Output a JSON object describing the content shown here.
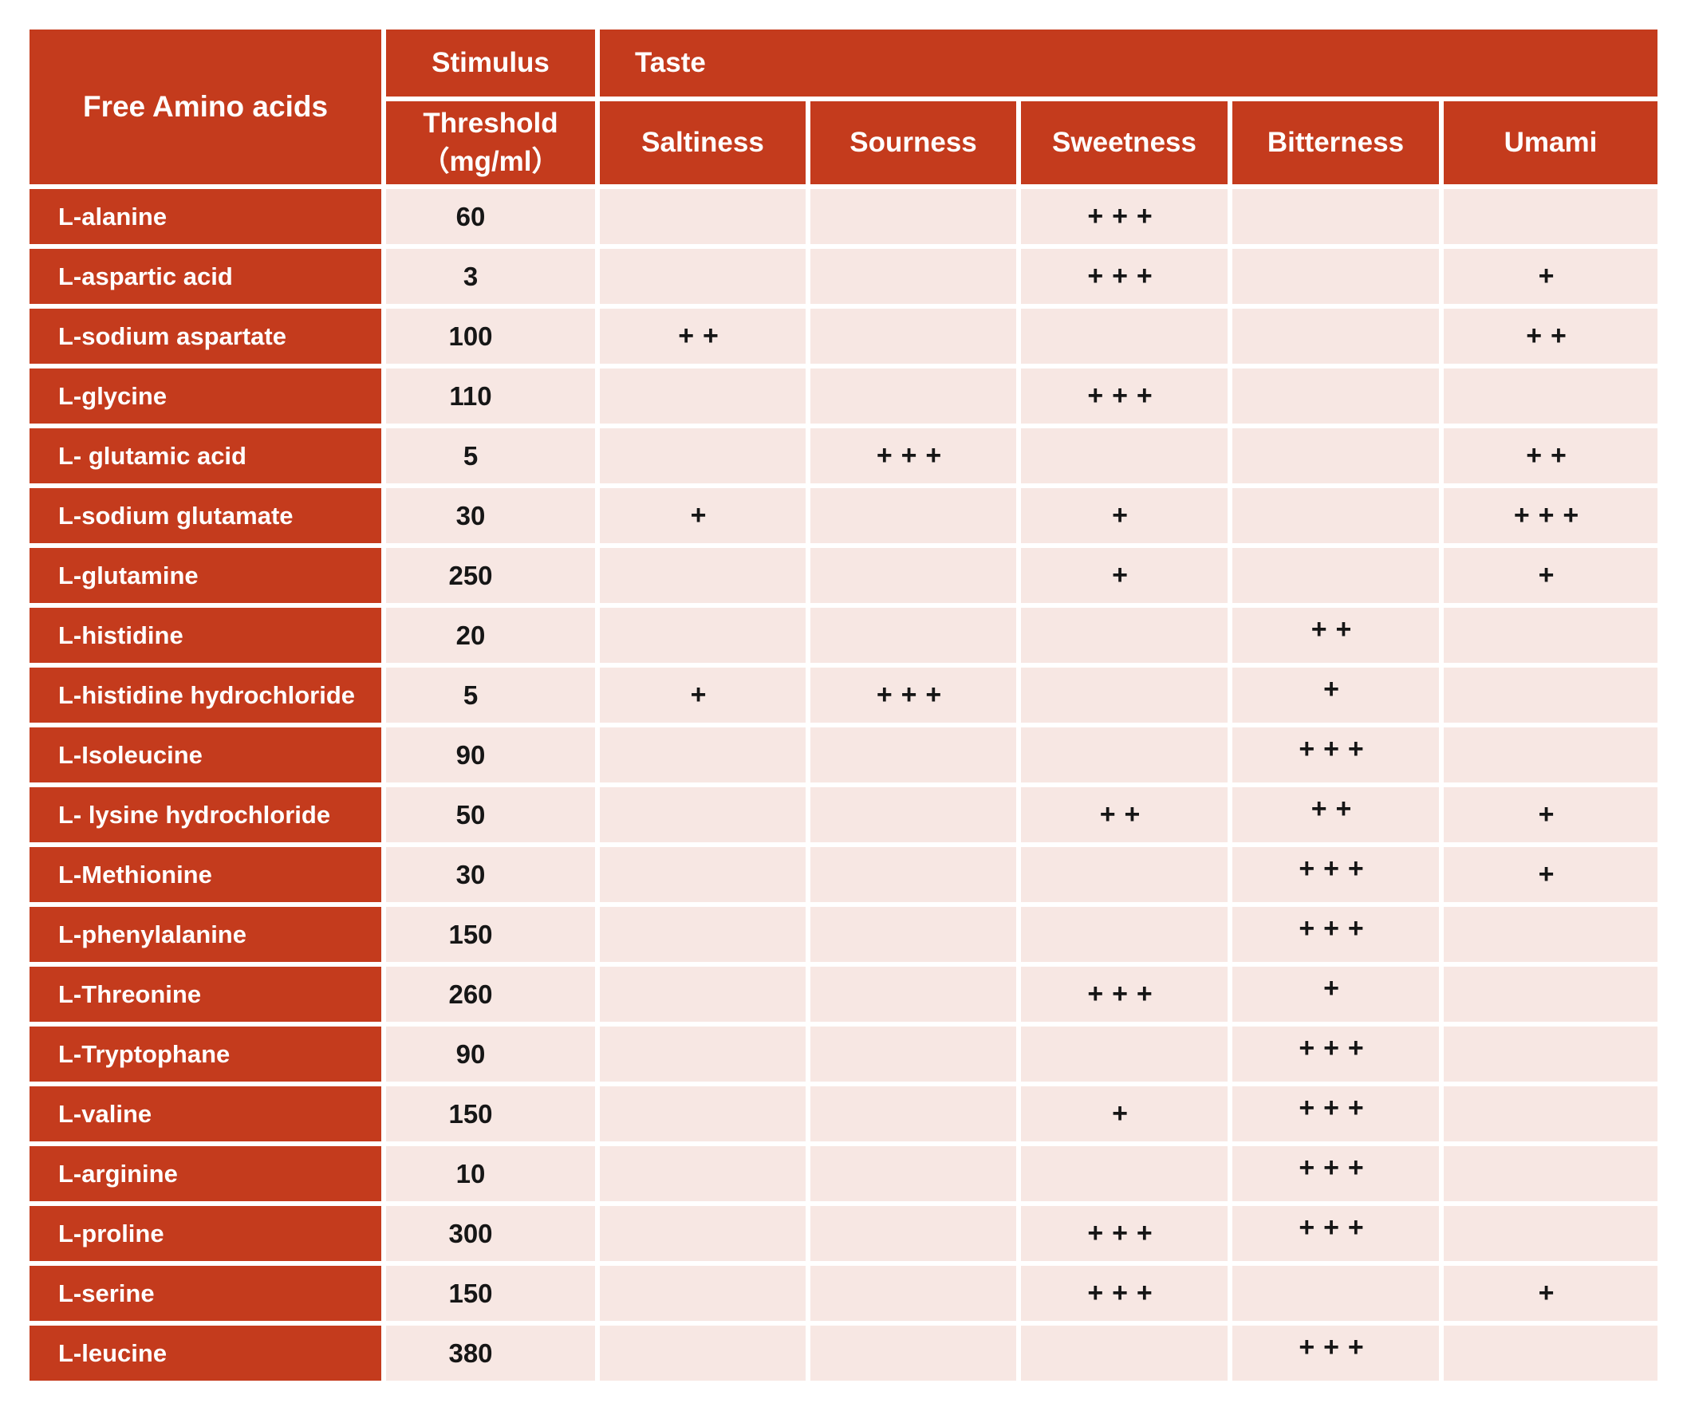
{
  "colors": {
    "header_red": "#c43b1d",
    "cell_pink": "#f7e7e3",
    "text_black": "#161616",
    "background": "#ffffff"
  },
  "header": {
    "amino_column": "Free Amino acids",
    "stimulus": "Stimulus",
    "threshold": "Threshold",
    "threshold_unit": "（mg/ml）",
    "taste": "Taste",
    "taste_columns": [
      "Saltiness",
      "Sourness",
      "Sweetness",
      "Bitterness",
      "Umami"
    ]
  },
  "rows": [
    {
      "name": "L-alanine",
      "threshold": "60",
      "saltiness": "",
      "sourness": "",
      "sweetness": "+++",
      "bitterness": "",
      "umami": ""
    },
    {
      "name": "L-aspartic acid",
      "threshold": "3",
      "saltiness": "",
      "sourness": "",
      "sweetness": "+++",
      "bitterness": "",
      "umami": "+"
    },
    {
      "name": "L-sodium aspartate",
      "threshold": "100",
      "saltiness": "++",
      "sourness": "",
      "sweetness": "",
      "bitterness": "",
      "umami": "++"
    },
    {
      "name": "L-glycine",
      "threshold": "110",
      "saltiness": "",
      "sourness": "",
      "sweetness": "+++",
      "bitterness": "",
      "umami": ""
    },
    {
      "name": "L- glutamic acid",
      "threshold": "5",
      "saltiness": "",
      "sourness": "+++",
      "sweetness": "",
      "bitterness": "",
      "umami": "++"
    },
    {
      "name": "L-sodium glutamate",
      "threshold": "30",
      "saltiness": "+",
      "sourness": "",
      "sweetness": "+",
      "bitterness": "",
      "umami": "+++"
    },
    {
      "name": "L-glutamine",
      "threshold": "250",
      "saltiness": "",
      "sourness": "",
      "sweetness": "+",
      "bitterness": "",
      "umami": "+"
    },
    {
      "name": "L-histidine",
      "threshold": "20",
      "saltiness": "",
      "sourness": "",
      "sweetness": "",
      "bitterness": "++",
      "umami": ""
    },
    {
      "name": "L-histidine hydrochloride",
      "threshold": "5",
      "saltiness": "+",
      "sourness": "+++",
      "sweetness": "",
      "bitterness": "+",
      "umami": ""
    },
    {
      "name": "L-Isoleucine",
      "threshold": "90",
      "saltiness": "",
      "sourness": "",
      "sweetness": "",
      "bitterness": "+++",
      "umami": ""
    },
    {
      "name": "L- lysine hydrochloride",
      "threshold": "50",
      "saltiness": "",
      "sourness": "",
      "sweetness": "++",
      "bitterness": "++",
      "umami": "+"
    },
    {
      "name": "L-Methionine",
      "threshold": "30",
      "saltiness": "",
      "sourness": "",
      "sweetness": "",
      "bitterness": "+++",
      "umami": "+"
    },
    {
      "name": "L-phenylalanine",
      "threshold": "150",
      "saltiness": "",
      "sourness": "",
      "sweetness": "",
      "bitterness": "+++",
      "umami": ""
    },
    {
      "name": "L-Threonine",
      "threshold": "260",
      "saltiness": "",
      "sourness": "",
      "sweetness": "+++",
      "bitterness": "+",
      "umami": ""
    },
    {
      "name": "L-Tryptophane",
      "threshold": "90",
      "saltiness": "",
      "sourness": "",
      "sweetness": "",
      "bitterness": "+++",
      "umami": ""
    },
    {
      "name": "L-valine",
      "threshold": "150",
      "saltiness": "",
      "sourness": "",
      "sweetness": "+",
      "bitterness": "+++",
      "umami": ""
    },
    {
      "name": "L-arginine",
      "threshold": "10",
      "saltiness": "",
      "sourness": "",
      "sweetness": "",
      "bitterness": "+++",
      "umami": ""
    },
    {
      "name": "L-proline",
      "threshold": "300",
      "saltiness": "",
      "sourness": "",
      "sweetness": "+++",
      "bitterness": "+++",
      "umami": ""
    },
    {
      "name": "L-serine",
      "threshold": "150",
      "saltiness": "",
      "sourness": "",
      "sweetness": "+++",
      "bitterness": "",
      "umami": "+"
    },
    {
      "name": "L-leucine",
      "threshold": "380",
      "saltiness": "",
      "sourness": "",
      "sweetness": "",
      "bitterness": "+++",
      "umami": ""
    }
  ]
}
